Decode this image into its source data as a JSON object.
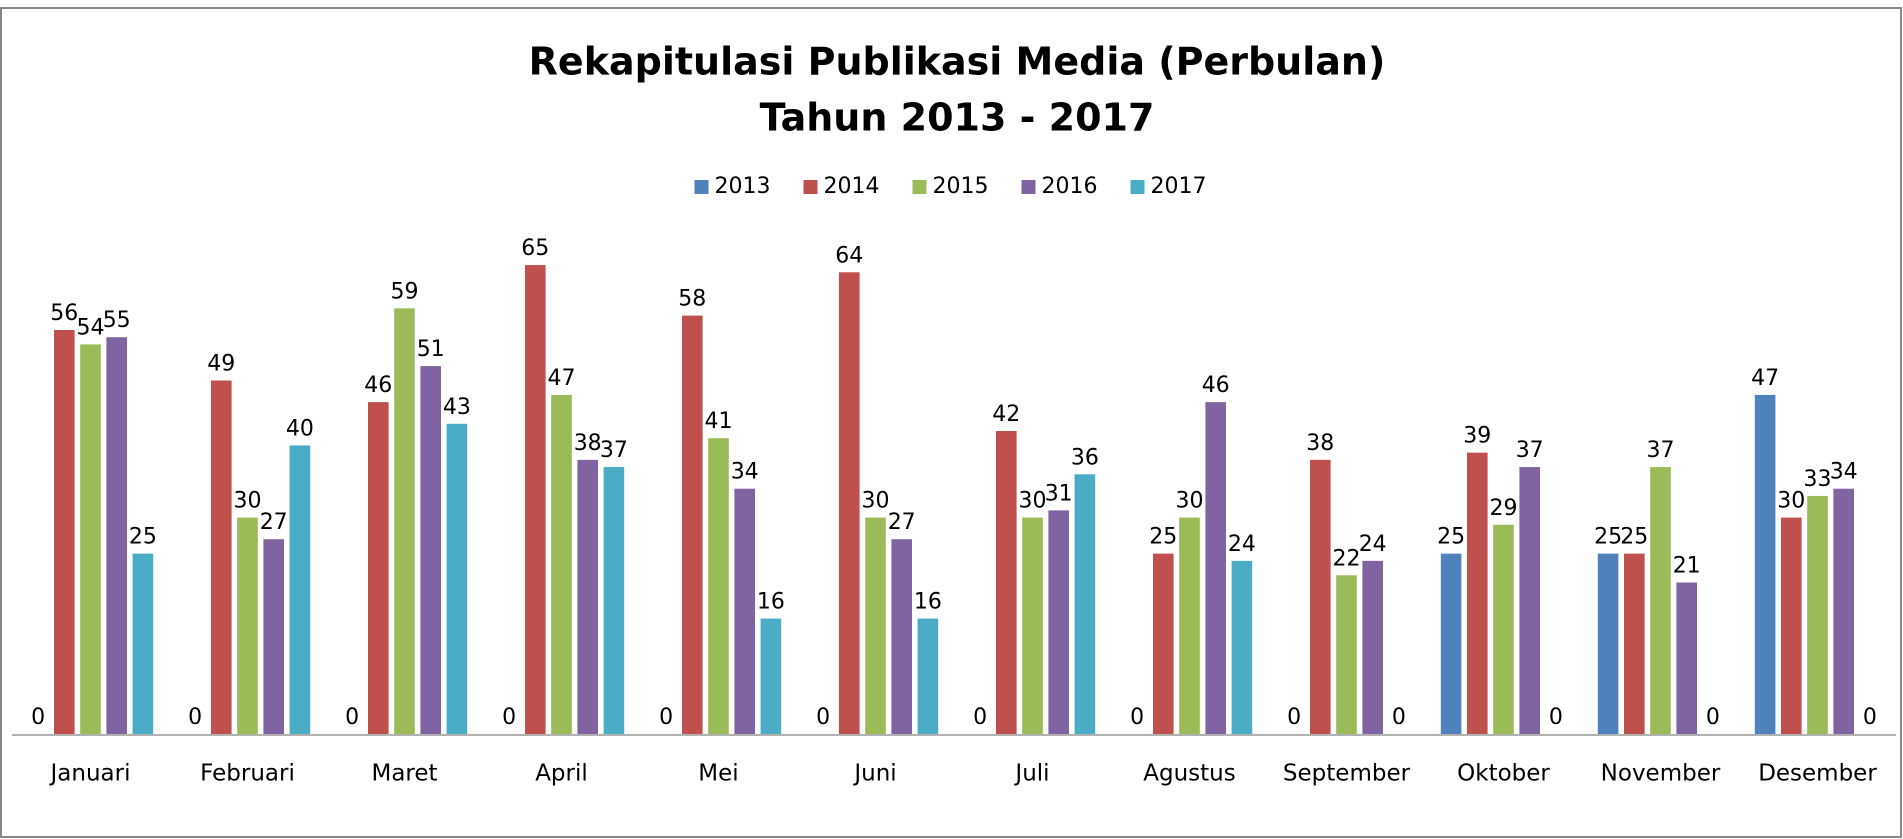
{
  "chart_data": {
    "type": "bar",
    "title": "Rekapitulasi Publikasi Media (Perbulan)",
    "subtitle": "Tahun 2013 - 2017",
    "categories": [
      "Januari",
      "Februari",
      "Maret",
      "April",
      "Mei",
      "Juni",
      "Juli",
      "Agustus",
      "September",
      "Oktober",
      "November",
      "Desember"
    ],
    "series": [
      {
        "name": "2013",
        "color": "#4f81bd",
        "values": [
          0,
          0,
          0,
          0,
          0,
          0,
          0,
          0,
          0,
          25,
          25,
          47
        ]
      },
      {
        "name": "2014",
        "color": "#c0504d",
        "values": [
          56,
          49,
          46,
          65,
          58,
          64,
          42,
          25,
          38,
          39,
          25,
          30
        ]
      },
      {
        "name": "2015",
        "color": "#9bbb59",
        "values": [
          54,
          30,
          59,
          47,
          41,
          30,
          30,
          30,
          22,
          29,
          37,
          33
        ]
      },
      {
        "name": "2016",
        "color": "#8064a2",
        "values": [
          55,
          27,
          51,
          38,
          34,
          27,
          31,
          46,
          24,
          37,
          21,
          34
        ]
      },
      {
        "name": "2017",
        "color": "#4bacc6",
        "values": [
          25,
          40,
          43,
          37,
          16,
          16,
          36,
          24,
          0,
          0,
          0,
          0
        ]
      }
    ],
    "ylim": [
      0,
      70
    ],
    "legend": "top"
  }
}
